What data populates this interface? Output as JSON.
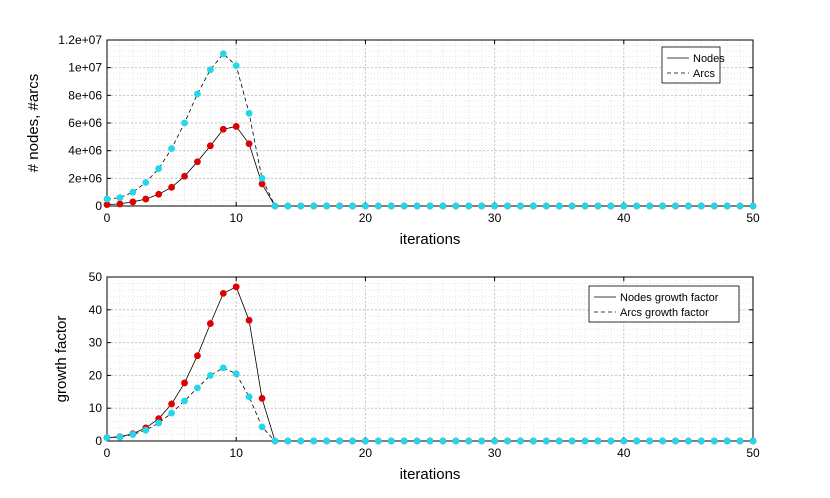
{
  "chart_data": [
    {
      "type": "line",
      "xlabel": "iterations",
      "ylabel": "# nodes, #arcs",
      "xlim": [
        0,
        50
      ],
      "ylim": [
        0,
        12000000
      ],
      "xticks": [
        0,
        10,
        20,
        30,
        40,
        50
      ],
      "xtick_labels": [
        "0",
        "10",
        "20",
        "30",
        "40",
        "50"
      ],
      "yticks": [
        0,
        2000000,
        4000000,
        6000000,
        8000000,
        10000000,
        12000000
      ],
      "ytick_labels": [
        "0",
        "2e+06",
        "4e+06",
        "6e+06",
        "8e+06",
        "1e+07",
        "1.2e+07"
      ],
      "grid": true,
      "minor_grid": true,
      "legend_position": "top-right",
      "x": [
        0,
        1,
        2,
        3,
        4,
        5,
        6,
        7,
        8,
        9,
        10,
        11,
        12,
        13,
        14,
        15,
        16,
        17,
        18,
        19,
        20,
        21,
        22,
        23,
        24,
        25,
        26,
        27,
        28,
        29,
        30,
        31,
        32,
        33,
        34,
        35,
        36,
        37,
        38,
        39,
        40,
        41,
        42,
        43,
        44,
        45,
        46,
        47,
        48,
        49,
        50
      ],
      "series": [
        {
          "name": "Nodes",
          "line_style": "solid",
          "line_color": "#000000",
          "marker_color": "#e00000",
          "values": [
            100000,
            150000,
            300000,
            500000,
            850000,
            1350000,
            2150000,
            3200000,
            4350000,
            5550000,
            5750000,
            4500000,
            1600000,
            0,
            0,
            0,
            0,
            0,
            0,
            0,
            0,
            0,
            0,
            0,
            0,
            0,
            0,
            0,
            0,
            0,
            0,
            0,
            0,
            0,
            0,
            0,
            0,
            0,
            0,
            0,
            0,
            0,
            0,
            0,
            0,
            0,
            0,
            0,
            0,
            0,
            0
          ]
        },
        {
          "name": "Arcs",
          "line_style": "dashed",
          "line_color": "#000000",
          "marker_color": "#22d8e8",
          "values": [
            500000,
            600000,
            1000000,
            1700000,
            2700000,
            4150000,
            6000000,
            8100000,
            9850000,
            11000000,
            10150000,
            6700000,
            2000000,
            0,
            0,
            0,
            0,
            0,
            0,
            0,
            0,
            0,
            0,
            0,
            0,
            0,
            0,
            0,
            0,
            0,
            0,
            0,
            0,
            0,
            0,
            0,
            0,
            0,
            0,
            0,
            0,
            0,
            0,
            0,
            0,
            0,
            0,
            0,
            0,
            0,
            0
          ]
        }
      ]
    },
    {
      "type": "line",
      "xlabel": "iterations",
      "ylabel": "growth factor",
      "xlim": [
        0,
        50
      ],
      "ylim": [
        0,
        50
      ],
      "xticks": [
        0,
        10,
        20,
        30,
        40,
        50
      ],
      "xtick_labels": [
        "0",
        "10",
        "20",
        "30",
        "40",
        "50"
      ],
      "yticks": [
        0,
        10,
        20,
        30,
        40,
        50
      ],
      "ytick_labels": [
        "0",
        "10",
        "20",
        "30",
        "40",
        "50"
      ],
      "grid": true,
      "minor_grid": true,
      "legend_position": "top-right",
      "x": [
        0,
        1,
        2,
        3,
        4,
        5,
        6,
        7,
        8,
        9,
        10,
        11,
        12,
        13,
        14,
        15,
        16,
        17,
        18,
        19,
        20,
        21,
        22,
        23,
        24,
        25,
        26,
        27,
        28,
        29,
        30,
        31,
        32,
        33,
        34,
        35,
        36,
        37,
        38,
        39,
        40,
        41,
        42,
        43,
        44,
        45,
        46,
        47,
        48,
        49,
        50
      ],
      "series": [
        {
          "name": "Nodes growth factor",
          "line_style": "solid",
          "line_color": "#000000",
          "marker_color": "#e00000",
          "values": [
            1,
            1.3,
            2.2,
            4,
            6.8,
            11.3,
            17.7,
            26,
            35.8,
            45,
            47,
            36.8,
            13,
            0,
            0,
            0,
            0,
            0,
            0,
            0,
            0,
            0,
            0,
            0,
            0,
            0,
            0,
            0,
            0,
            0,
            0,
            0,
            0,
            0,
            0,
            0,
            0,
            0,
            0,
            0,
            0,
            0,
            0,
            0,
            0,
            0,
            0,
            0,
            0,
            0,
            0
          ]
        },
        {
          "name": "Arcs growth factor",
          "line_style": "dashed",
          "line_color": "#000000",
          "marker_color": "#22d8e8",
          "values": [
            1,
            1.2,
            2,
            3.3,
            5.5,
            8.5,
            12.2,
            16.2,
            20,
            22.3,
            20.5,
            13.5,
            4.3,
            0,
            0,
            0,
            0,
            0,
            0,
            0,
            0,
            0,
            0,
            0,
            0,
            0,
            0,
            0,
            0,
            0,
            0,
            0,
            0,
            0,
            0,
            0,
            0,
            0,
            0,
            0,
            0,
            0,
            0,
            0,
            0,
            0,
            0,
            0,
            0,
            0,
            0
          ]
        }
      ]
    }
  ]
}
